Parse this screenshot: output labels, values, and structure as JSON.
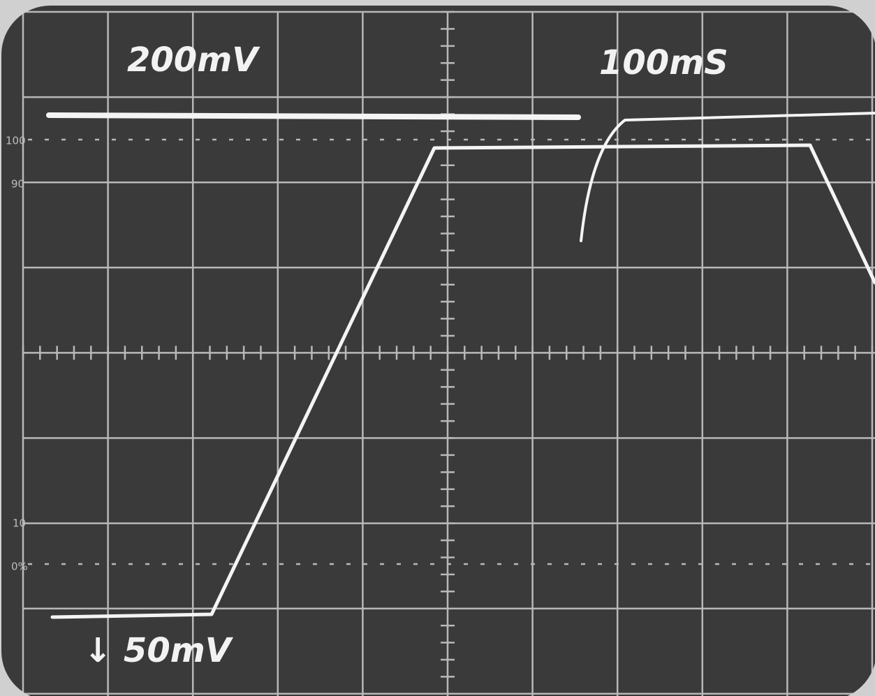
{
  "screen": {
    "top_left_label": "200mV",
    "top_right_label": "100mS",
    "bottom_left_label": "↓ 50mV",
    "graticule_labels": [
      "100",
      "90",
      "10",
      "0%"
    ]
  }
}
